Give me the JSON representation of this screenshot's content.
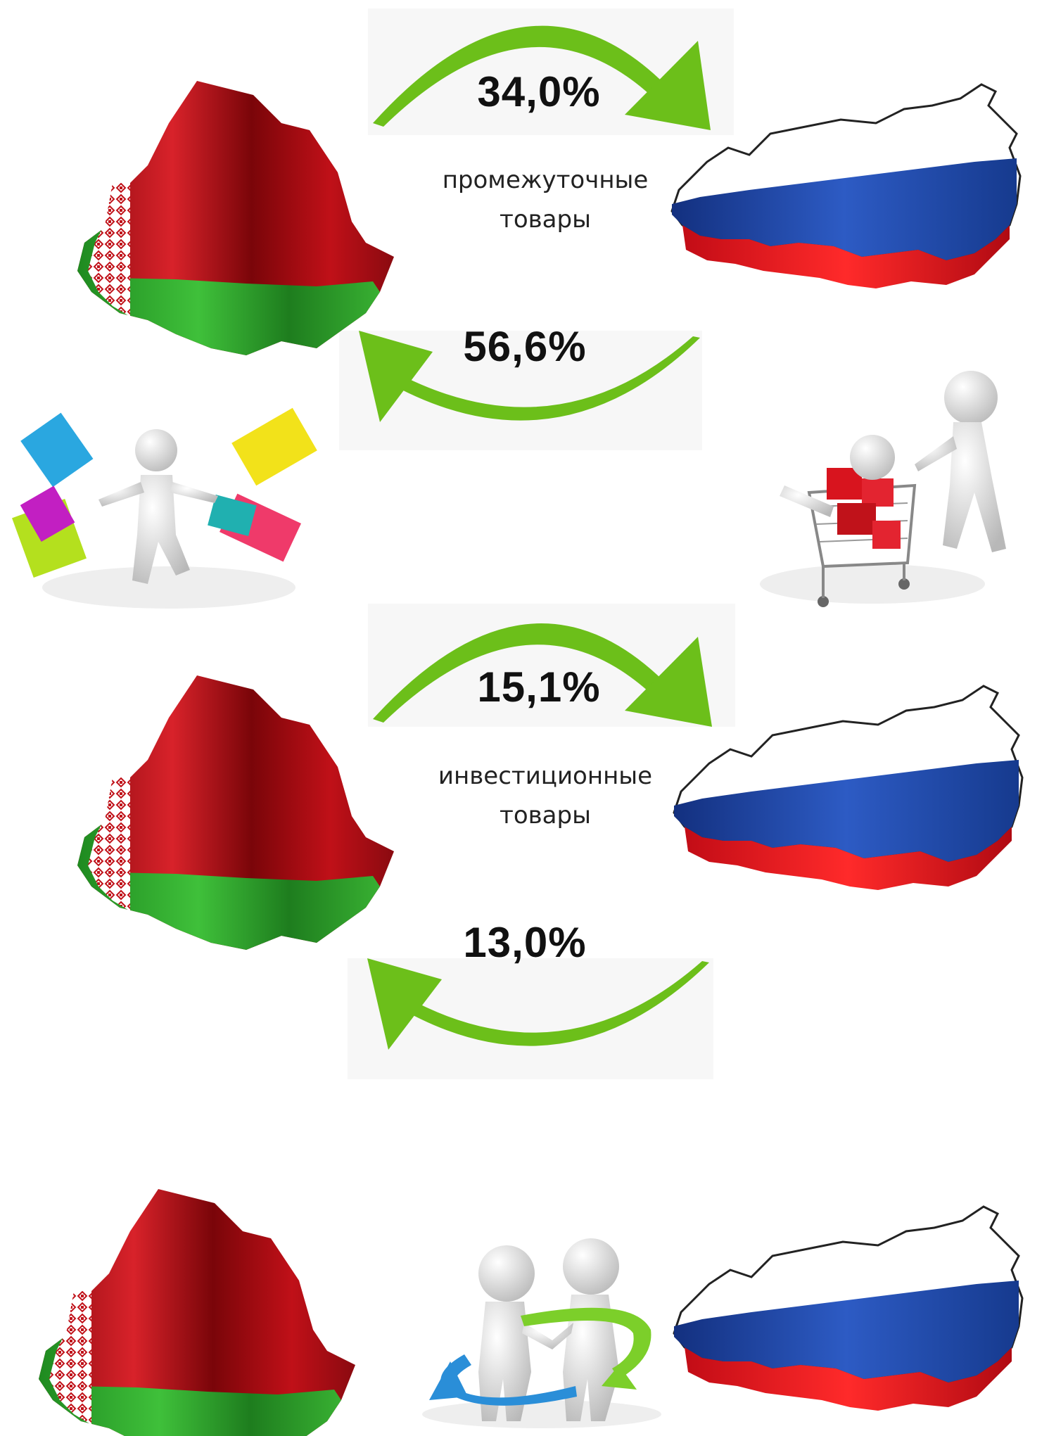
{
  "flows": [
    {
      "percent": "34,0%",
      "direction": "belarus-to-russia"
    },
    {
      "percent": "56,6%",
      "direction": "russia-to-belarus"
    },
    {
      "percent": "15,1%",
      "direction": "belarus-to-russia"
    },
    {
      "percent": "13,0%",
      "direction": "russia-to-belarus"
    }
  ],
  "categories": [
    {
      "line1": "промежуточные",
      "line2": "товары"
    },
    {
      "line1": "инвестиционные",
      "line2": "товары"
    }
  ],
  "colors": {
    "arrow_green": "#6cbf1a",
    "belarus_red": "#c0121a",
    "belarus_green": "#2fa02a",
    "russia_white": "#ffffff",
    "russia_blue": "#1f3f9a",
    "russia_red": "#e3101e"
  },
  "icons": [
    "belarus-flag-map-icon",
    "russia-flag-map-icon",
    "shopping-figure-icon",
    "cart-figure-icon",
    "handshake-figures-icon"
  ]
}
